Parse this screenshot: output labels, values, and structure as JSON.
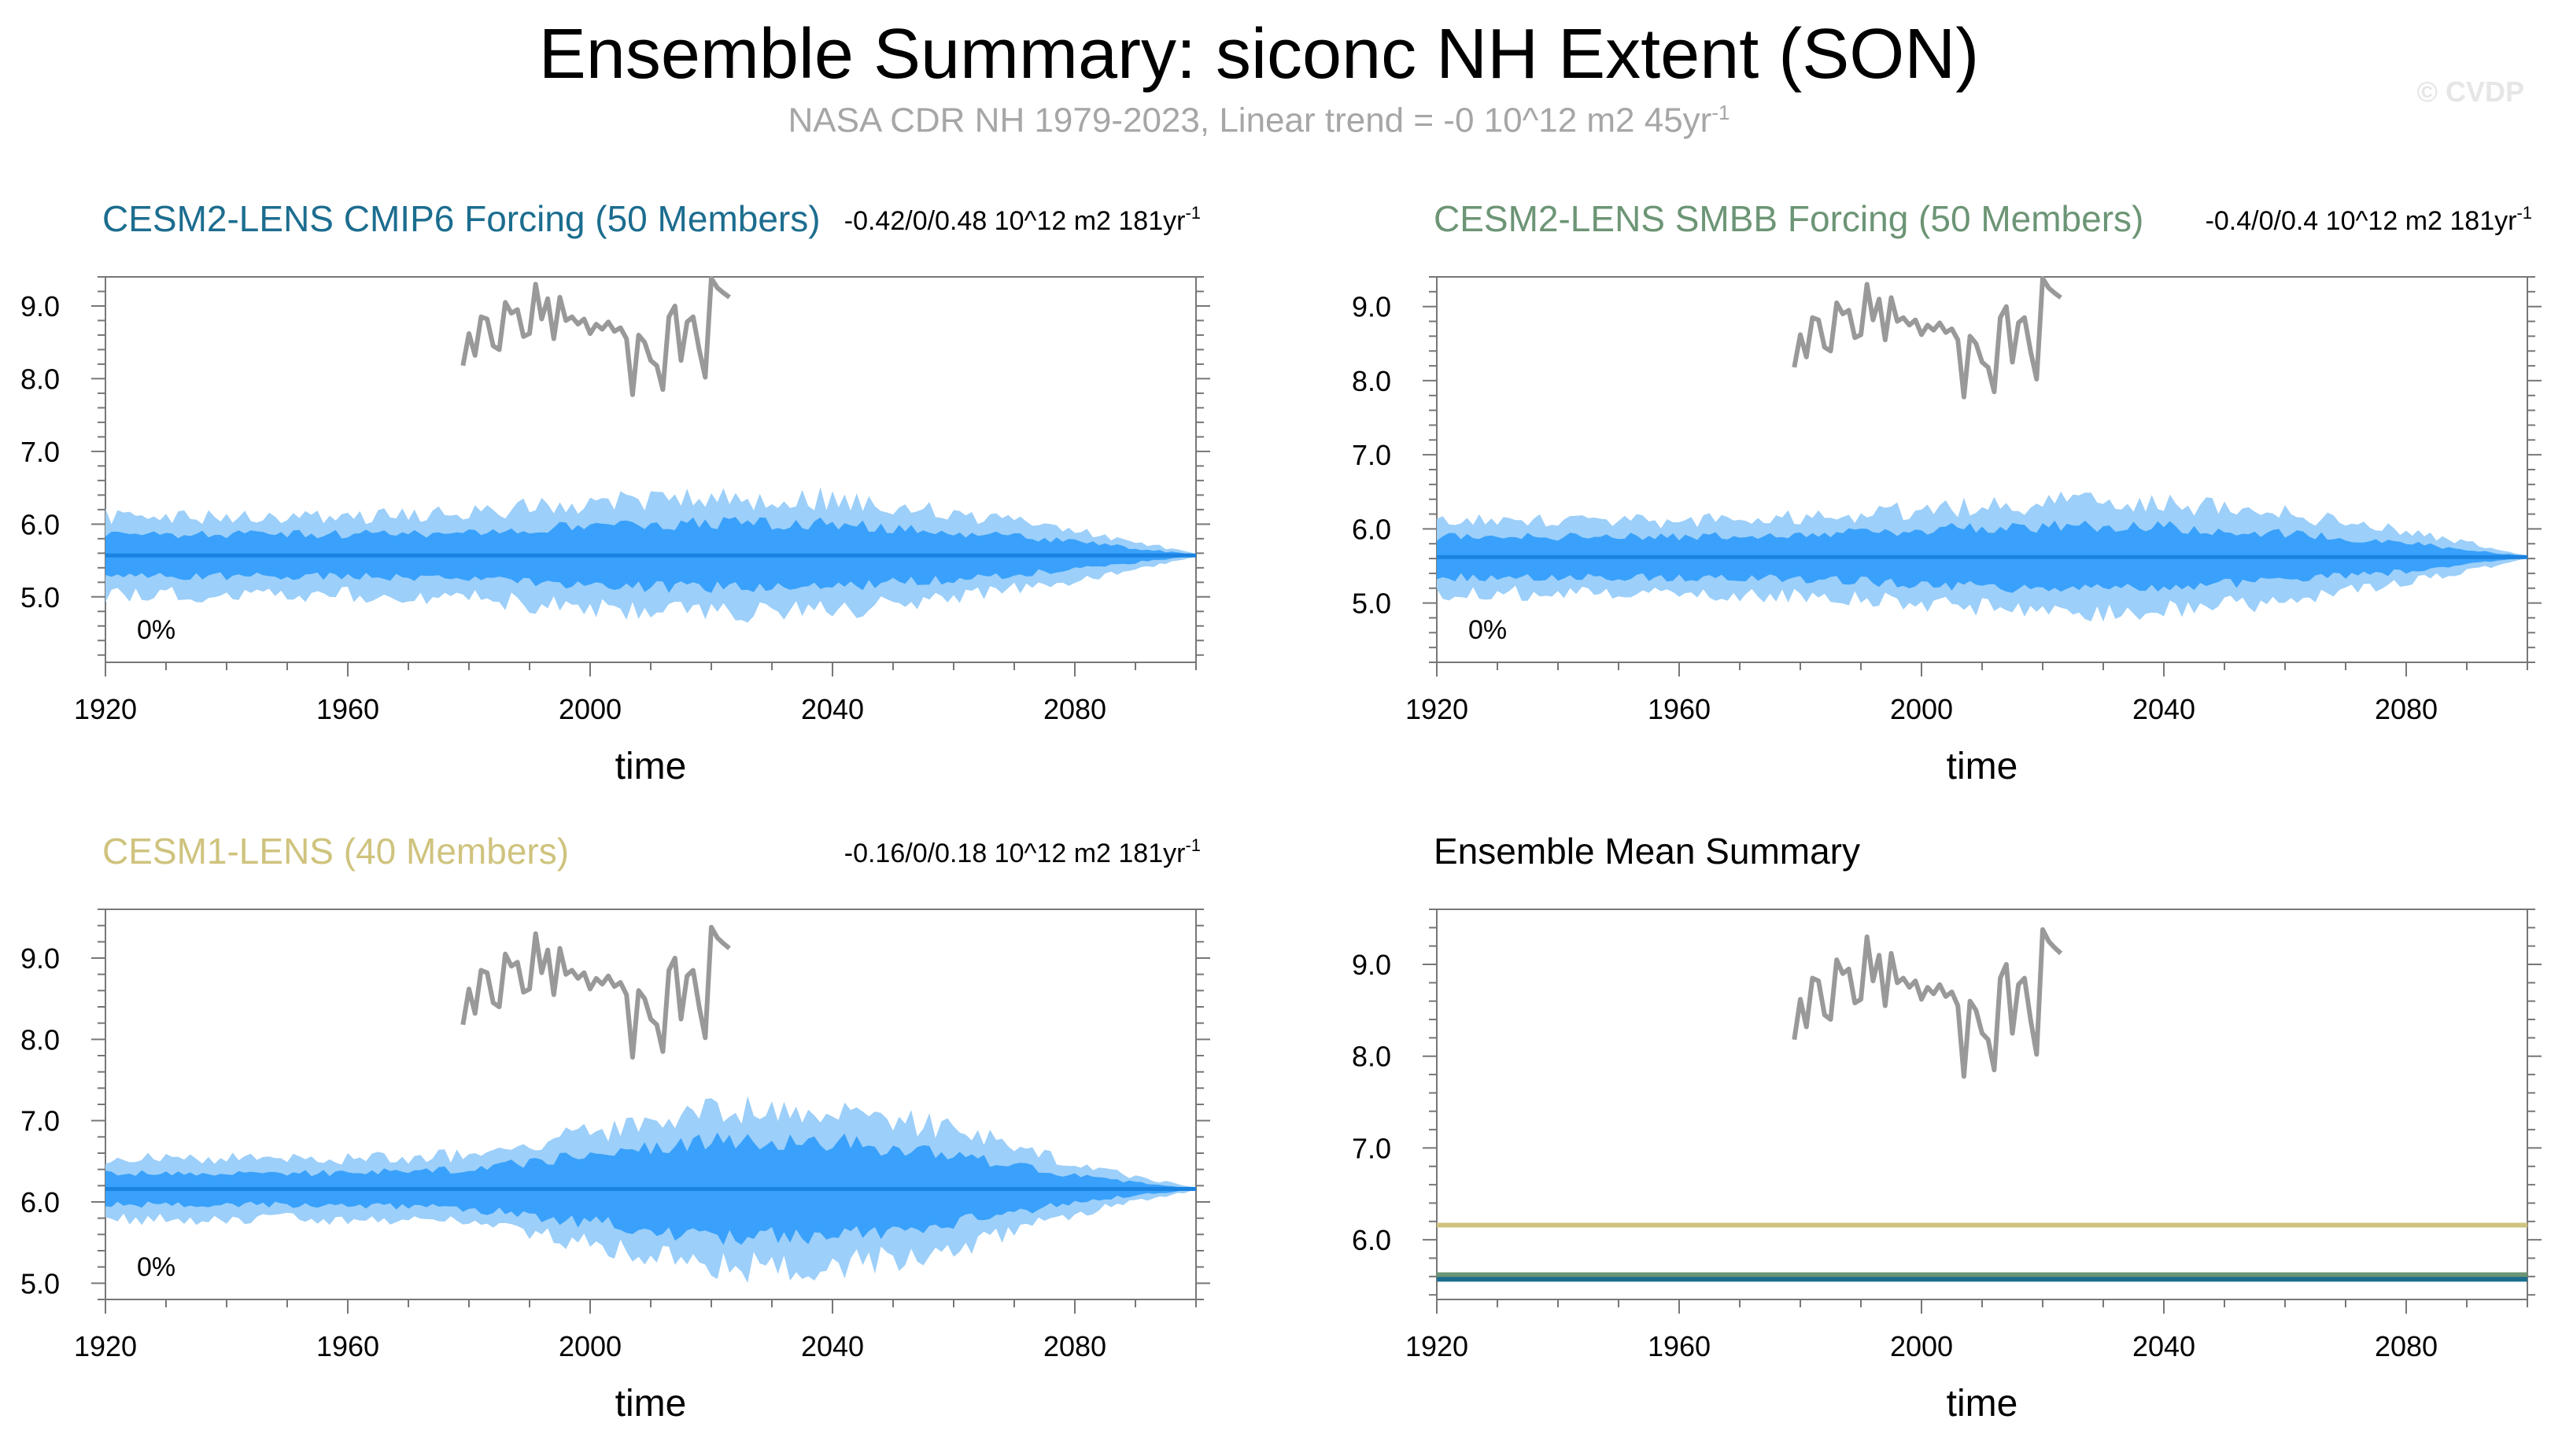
{
  "header": {
    "title": "Ensemble Summary: siconc NH Extent (SON)",
    "subtitle_main": "NASA CDR NH 1979-2023, Linear trend = -0 10^12 m2 45yr",
    "subtitle_sup": "-1",
    "watermark": "© CVDP"
  },
  "colors": {
    "outer_band": "#9ccff9",
    "inner_band": "#39a1fb",
    "mean_line": "#1a82e0",
    "obs_line": "#999999",
    "cmip6": "#1c6d8f",
    "smbb": "#6c9575",
    "cesm1": "#cfc37e"
  },
  "chart_data": [
    {
      "type": "area",
      "title": "CESM2-LENS CMIP6 Forcing (50 Members)",
      "title_color": "#1c6d8f",
      "trend_text": "-0.42/0/0.48 10^12 m2 181yr",
      "trend_sup": "-1",
      "xlabel": "time",
      "ylabel": "",
      "xlim": [
        1920,
        2100
      ],
      "ylim": [
        4.1,
        9.4
      ],
      "xticks": [
        1920,
        1960,
        2000,
        2040,
        2080
      ],
      "yticks": [
        5.0,
        6.0,
        7.0,
        8.0,
        9.0
      ],
      "ytick_labels": [
        "5.0",
        "6.0",
        "7.0",
        "8.0",
        "9.0"
      ],
      "pct_label": "0%",
      "mean": 5.57,
      "outer_spread": {
        "x": [
          1920,
          1940,
          1960,
          1980,
          2000,
          2020,
          2040,
          2060,
          2080,
          2090,
          2100
        ],
        "half": [
          0.55,
          0.55,
          0.55,
          0.6,
          0.75,
          0.8,
          0.8,
          0.6,
          0.35,
          0.2,
          0.02
        ]
      },
      "inner_spread": {
        "x": [
          1920,
          1940,
          1960,
          1980,
          2000,
          2020,
          2040,
          2060,
          2080,
          2090,
          2100
        ],
        "half": [
          0.3,
          0.3,
          0.3,
          0.32,
          0.42,
          0.45,
          0.45,
          0.33,
          0.2,
          0.1,
          0.01
        ]
      },
      "obs": {
        "x_start": 1979,
        "values": [
          8.18,
          8.62,
          8.32,
          8.85,
          8.82,
          8.45,
          8.4,
          9.05,
          8.9,
          8.95,
          8.58,
          8.62,
          9.3,
          8.82,
          9.1,
          8.55,
          9.12,
          8.8,
          8.85,
          8.75,
          8.82,
          8.62,
          8.75,
          8.68,
          8.78,
          8.65,
          8.7,
          8.55,
          7.78,
          8.6,
          8.5,
          8.25,
          8.18,
          7.85,
          8.85,
          9.0,
          8.25,
          8.78,
          8.85,
          8.4,
          8.02,
          9.38,
          9.25,
          9.18,
          9.12
        ]
      }
    },
    {
      "type": "area",
      "title": "CESM2-LENS SMBB Forcing (50 Members)",
      "title_color": "#6c9575",
      "trend_text": "-0.4/0/0.4 10^12 m2 181yr",
      "trend_sup": "-1",
      "xlabel": "time",
      "ylabel": "",
      "xlim": [
        1920,
        2100
      ],
      "ylim": [
        4.2,
        9.4
      ],
      "xticks": [
        1920,
        1960,
        2000,
        2040,
        2080
      ],
      "yticks": [
        5.0,
        6.0,
        7.0,
        8.0,
        9.0
      ],
      "ytick_labels": [
        "5.0",
        "6.0",
        "7.0",
        "8.0",
        "9.0"
      ],
      "pct_label": "0%",
      "mean": 5.62,
      "outer_spread": {
        "x": [
          1920,
          1940,
          1960,
          1980,
          2000,
          2020,
          2040,
          2060,
          2080,
          2090,
          2100
        ],
        "half": [
          0.5,
          0.5,
          0.5,
          0.55,
          0.65,
          0.75,
          0.75,
          0.6,
          0.35,
          0.2,
          0.02
        ]
      },
      "inner_spread": {
        "x": [
          1920,
          1940,
          1960,
          1980,
          2000,
          2020,
          2040,
          2060,
          2080,
          2090,
          2100
        ],
        "half": [
          0.28,
          0.28,
          0.28,
          0.3,
          0.38,
          0.42,
          0.42,
          0.32,
          0.2,
          0.1,
          0.01
        ]
      },
      "obs": {
        "x_start": 1979,
        "values": [
          8.18,
          8.62,
          8.32,
          8.85,
          8.82,
          8.45,
          8.4,
          9.05,
          8.9,
          8.95,
          8.58,
          8.62,
          9.3,
          8.82,
          9.1,
          8.55,
          9.12,
          8.8,
          8.85,
          8.75,
          8.82,
          8.62,
          8.75,
          8.68,
          8.78,
          8.65,
          8.7,
          8.55,
          7.78,
          8.6,
          8.5,
          8.25,
          8.18,
          7.85,
          8.85,
          9.0,
          8.25,
          8.78,
          8.85,
          8.4,
          8.02,
          9.38,
          9.25,
          9.18,
          9.12
        ]
      }
    },
    {
      "type": "area",
      "title": "CESM1-LENS (40 Members)",
      "title_color": "#cfc37e",
      "trend_text": "-0.16/0/0.18 10^12 m2 181yr",
      "trend_sup": "-1",
      "xlabel": "time",
      "ylabel": "",
      "xlim": [
        1920,
        2100
      ],
      "ylim": [
        4.8,
        9.6
      ],
      "xticks": [
        1920,
        1960,
        2000,
        2040,
        2080
      ],
      "yticks": [
        5.0,
        6.0,
        7.0,
        8.0,
        9.0
      ],
      "ytick_labels": [
        "5.0",
        "6.0",
        "7.0",
        "8.0",
        "9.0"
      ],
      "pct_label": "0%",
      "mean": 6.16,
      "outer_spread": {
        "x": [
          1920,
          1940,
          1960,
          1980,
          2000,
          2020,
          2040,
          2060,
          2080,
          2090,
          2100
        ],
        "half": [
          0.38,
          0.38,
          0.38,
          0.42,
          0.7,
          1.0,
          1.0,
          0.75,
          0.32,
          0.15,
          0.02
        ]
      },
      "inner_spread": {
        "x": [
          1920,
          1940,
          1960,
          1980,
          2000,
          2020,
          2040,
          2060,
          2080,
          2090,
          2100
        ],
        "half": [
          0.2,
          0.2,
          0.2,
          0.25,
          0.42,
          0.6,
          0.6,
          0.42,
          0.17,
          0.08,
          0.01
        ]
      },
      "obs": {
        "x_start": 1979,
        "values": [
          8.18,
          8.62,
          8.32,
          8.85,
          8.82,
          8.45,
          8.4,
          9.05,
          8.9,
          8.95,
          8.58,
          8.62,
          9.3,
          8.82,
          9.1,
          8.55,
          9.12,
          8.8,
          8.85,
          8.75,
          8.82,
          8.62,
          8.75,
          8.68,
          8.78,
          8.65,
          8.7,
          8.55,
          7.78,
          8.6,
          8.5,
          8.25,
          8.18,
          7.85,
          8.85,
          9.0,
          8.25,
          8.78,
          8.85,
          8.4,
          8.02,
          9.38,
          9.25,
          9.18,
          9.12
        ]
      }
    },
    {
      "type": "line",
      "title": "Ensemble Mean Summary",
      "title_color": "#000000",
      "xlabel": "time",
      "ylabel": "",
      "xlim": [
        1920,
        2100
      ],
      "ylim": [
        5.35,
        9.6
      ],
      "xticks": [
        1920,
        1960,
        2000,
        2040,
        2080
      ],
      "yticks": [
        6.0,
        7.0,
        8.0,
        9.0
      ],
      "ytick_labels": [
        "6.0",
        "7.0",
        "8.0",
        "9.0"
      ],
      "series": [
        {
          "name": "CESM1-LENS",
          "color": "#cfc37e",
          "value": 6.16
        },
        {
          "name": "CESM2-LENS SMBB",
          "color": "#6c9575",
          "value": 5.62
        },
        {
          "name": "CESM2-LENS CMIP6",
          "color": "#1c6d8f",
          "value": 5.57
        }
      ],
      "obs": {
        "x_start": 1979,
        "values": [
          8.18,
          8.62,
          8.32,
          8.85,
          8.82,
          8.45,
          8.4,
          9.05,
          8.9,
          8.95,
          8.58,
          8.62,
          9.3,
          8.82,
          9.1,
          8.55,
          9.12,
          8.8,
          8.85,
          8.75,
          8.82,
          8.62,
          8.75,
          8.68,
          8.78,
          8.65,
          8.7,
          8.55,
          7.78,
          8.6,
          8.5,
          8.25,
          8.18,
          7.85,
          8.85,
          9.0,
          8.25,
          8.78,
          8.85,
          8.4,
          8.02,
          9.38,
          9.25,
          9.18,
          9.12
        ]
      }
    }
  ]
}
